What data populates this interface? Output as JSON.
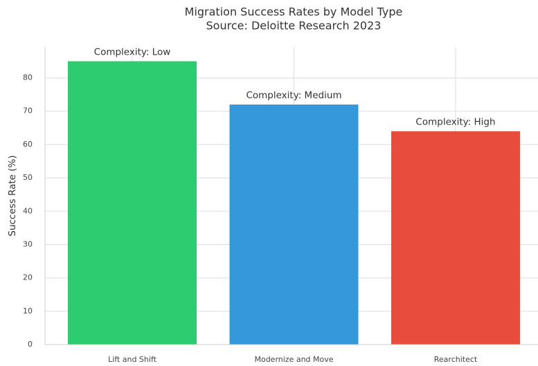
{
  "chart_data": {
    "type": "bar",
    "title": "Migration Success Rates by Model Type",
    "subtitle": "Source: Deloitte Research 2023",
    "ylabel": "Success Rate (%)",
    "categories": [
      "Lift and Shift",
      "Modernize and Move",
      "Rearchitect"
    ],
    "values": [
      85,
      72,
      64
    ],
    "colors": [
      "#2ecc71",
      "#3498db",
      "#e74c3c"
    ],
    "annotations": [
      "Complexity: Low",
      "Complexity: Medium",
      "Complexity: High"
    ],
    "ylim": [
      0,
      89.25
    ],
    "yticks": [
      0,
      10,
      20,
      30,
      40,
      50,
      60,
      70,
      80
    ],
    "grid": true
  }
}
